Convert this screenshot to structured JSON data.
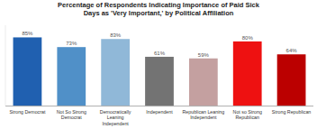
{
  "chart_data": {
    "type": "bar",
    "title": "Percentage of Respondents Indicating Importance of Paid Sick\nDays as 'Very Important,' by Political Affiliation",
    "categories": [
      "Strong Democrat",
      "Not So Strong\nDemocrat",
      "Democratically\nLeaning\nIndependent",
      "Independent",
      "Republican Leaning\nIndependent",
      "Not so Strong\nRepublican",
      "Strong Republican"
    ],
    "values": [
      85,
      73,
      83,
      61,
      59,
      80,
      64
    ],
    "value_labels": [
      "85%",
      "73%",
      "83%",
      "61%",
      "59%",
      "80%",
      "64%"
    ],
    "colors": [
      "#2060b0",
      "#5090c8",
      "#90b8d8",
      "#737373",
      "#c4a0a0",
      "#ee1111",
      "#bb0000"
    ],
    "ylim": [
      0,
      100
    ],
    "data_labels": true,
    "tick_labels": "x",
    "grid": false
  }
}
